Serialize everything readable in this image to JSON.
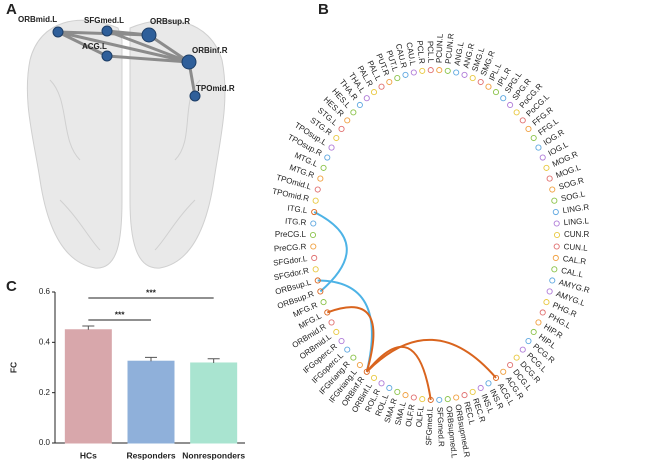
{
  "panel_labels": [
    "A",
    "B",
    "C"
  ],
  "brain": {
    "nodes": [
      "ORBmid.L",
      "SFGmed.L",
      "ORBsup.R",
      "ACG.L",
      "ORBinf.R",
      "TPOmid.R"
    ]
  },
  "connectome": {
    "regions": [
      "PCUN.L",
      "PCUN.R",
      "ANG.L",
      "ANG.R",
      "SMG.L",
      "SMG.R",
      "IPL.L",
      "IPL.R",
      "SPG.L",
      "SPG.R",
      "PoCG.R",
      "PoCG.L",
      "FFG.R",
      "FFG.L",
      "IOG.R",
      "IOG.L",
      "MOG.R",
      "MOG.L",
      "SOG.R",
      "SOG.L",
      "LING.R",
      "LING.L",
      "CUN.R",
      "CUN.L",
      "CAL.R",
      "CAL.L",
      "AMYG.R",
      "AMYG.L",
      "PHG.R",
      "PHG.L",
      "HIP.R",
      "HIP.L",
      "PCG.R",
      "PCG.L",
      "DCG.R",
      "DCG.L",
      "ACG.R",
      "ACG.L",
      "INS.R",
      "INS.L",
      "REC.R",
      "REC.L",
      "ORBsupmed.R",
      "ORBsupmed.L",
      "SFGmed.R",
      "SFGmed.L",
      "OLF.L",
      "OLF.R",
      "SMA.L",
      "SMA.R",
      "ROL.L",
      "ROL.R",
      "ORBinf.L",
      "ORBinf.R",
      "IFGtriang.L",
      "IFGtriang.R",
      "IFGoperc.L",
      "IFGoperc.R",
      "ORBmid.L",
      "ORBmid.R",
      "MFG.L",
      "MFG.R",
      "ORBsup.R",
      "ORBsup.L",
      "SFGdor.R",
      "SFGdor.L",
      "PreCG.R",
      "PreCG.L",
      "ITG.R",
      "ITG.L",
      "TPOmid.R",
      "TPOmid.L",
      "MTG.R",
      "MTG.L",
      "TPOsup.R",
      "TPOsup.L",
      "STG.R",
      "STG.L",
      "HES.R",
      "HES.L",
      "THA.R",
      "THA.L",
      "PAL.R",
      "PAL.L",
      "PUT.R",
      "PUT.L",
      "CAU.R",
      "CAU.L",
      "PCL.R",
      "PCL.L"
    ],
    "node_colors": [
      "#f0a040",
      "#8bc34a",
      "#5fa8e0",
      "#b07cd8",
      "#e8c840",
      "#e07070"
    ],
    "edges": [
      {
        "source": "ITG.L",
        "target": "ORBsup.R",
        "color": "#4db3e6"
      },
      {
        "source": "ORBsup.L",
        "target": "ORBinf.R",
        "color": "#4db3e6"
      },
      {
        "source": "MFG.L",
        "target": "ORBinf.R",
        "color": "#d9641e"
      },
      {
        "source": "ORBinf.R",
        "target": "SFGmed.L",
        "color": "#d9641e"
      },
      {
        "source": "ORBinf.R",
        "target": "ACG.L",
        "color": "#d9641e"
      }
    ]
  },
  "chart_data": {
    "type": "bar",
    "ylabel": "FC",
    "categories": [
      "HCs",
      "Responders",
      "Nonresponders"
    ],
    "values": [
      0.45,
      0.325,
      0.318
    ],
    "errors": [
      0.015,
      0.015,
      0.017
    ],
    "colors": [
      "#d8a7ab",
      "#8fb0da",
      "#a9e4d0"
    ],
    "ylim": [
      0,
      0.6
    ],
    "yticks": [
      {
        "value": 0,
        "label": "0.0"
      },
      0.2,
      0.4,
      0.6
    ],
    "comparisons": [
      {
        "groups": [
          "HCs",
          "Nonresponders"
        ],
        "label": "***"
      },
      {
        "groups": [
          "HCs",
          "Responders"
        ],
        "label": "***"
      }
    ]
  }
}
